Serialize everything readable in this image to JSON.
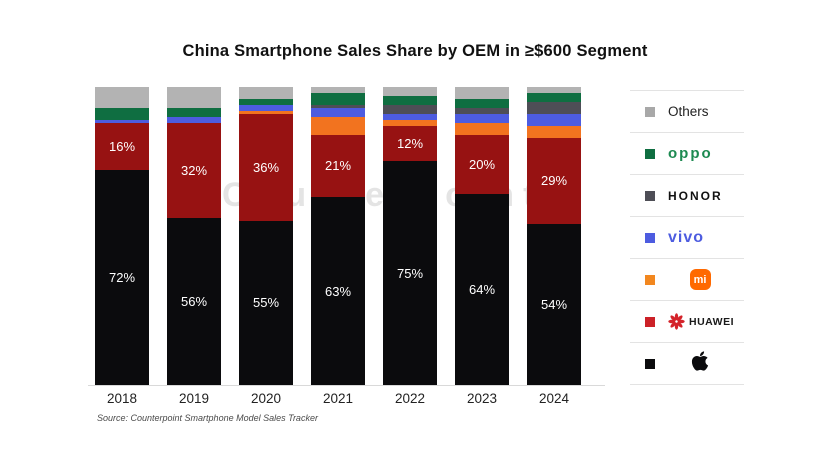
{
  "title": "China Smartphone Sales Share by OEM in ≥$600 Segment",
  "source": "Source: Counterpoint Smartphone Model Sales Tracker",
  "watermark": "Counterpoint",
  "colors": {
    "apple": "#0b0b0d",
    "huawei": "#971212",
    "mi": "#f2731f",
    "vivo": "#4d5ce0",
    "honor": "#4e4e56",
    "oppo": "#0f6e41",
    "others": "#b3b3b3",
    "axis": "#d9d9d9",
    "segment_label": "#ffffff"
  },
  "chart_data": {
    "type": "bar",
    "stacked": true,
    "title": "China Smartphone Sales Share by OEM in ≥$600 Segment",
    "xlabel": "",
    "ylabel": "",
    "unit": "%",
    "ylim": [
      0,
      100
    ],
    "grid": false,
    "legend_position": "right",
    "categories": [
      "2018",
      "2019",
      "2020",
      "2021",
      "2022",
      "2023",
      "2024"
    ],
    "series": [
      {
        "name": "Apple",
        "color_key": "apple",
        "show_labels": true,
        "values": [
          72,
          56,
          55,
          63,
          75,
          64,
          54
        ]
      },
      {
        "name": "HUAWEI",
        "color_key": "huawei",
        "show_labels": true,
        "values": [
          16,
          32,
          36,
          21,
          12,
          20,
          29
        ]
      },
      {
        "name": "Mi",
        "color_key": "mi",
        "show_labels": false,
        "values": [
          0,
          0,
          1,
          6,
          2,
          4,
          4
        ]
      },
      {
        "name": "vivo",
        "color_key": "vivo",
        "show_labels": false,
        "values": [
          1,
          2,
          2,
          3,
          2,
          3,
          4
        ]
      },
      {
        "name": "HONOR",
        "color_key": "honor",
        "show_labels": false,
        "values": [
          0,
          0,
          0,
          1,
          3,
          2,
          4
        ]
      },
      {
        "name": "OPPO",
        "color_key": "oppo",
        "show_labels": false,
        "values": [
          4,
          3,
          2,
          4,
          3,
          3,
          3
        ]
      },
      {
        "name": "Others",
        "color_key": "others",
        "show_labels": false,
        "values": [
          7,
          7,
          4,
          2,
          3,
          4,
          2
        ]
      }
    ]
  },
  "legend": {
    "items": [
      {
        "id": "others",
        "label": "Others",
        "style": "plain",
        "swatch": "#a8a8a8",
        "text_color": "#222222"
      },
      {
        "id": "oppo",
        "label": "oppo",
        "style": "oppo",
        "swatch": "#0f6e41",
        "text_color": "#1d8a51"
      },
      {
        "id": "honor",
        "label": "HONOR",
        "style": "honor",
        "swatch": "#4e4e56",
        "text_color": "#111111"
      },
      {
        "id": "vivo",
        "label": "vivo",
        "style": "vivo",
        "swatch": "#4d5ce0",
        "text_color": "#4d5ce0"
      },
      {
        "id": "mi",
        "label": "mi",
        "style": "mi",
        "swatch": "#f2871f",
        "badge_color": "#ff6900",
        "icon": "xiaomi-logo"
      },
      {
        "id": "huawei",
        "label": "HUAWEI",
        "style": "huawei",
        "swatch": "#cc2128",
        "text_color": "#1a1a1a",
        "logo_color": "#d4232a",
        "icon": "huawei-flower-logo"
      },
      {
        "id": "apple",
        "label": "",
        "style": "apple",
        "swatch": "#0b0b0d",
        "icon": "apple-logo"
      }
    ]
  }
}
